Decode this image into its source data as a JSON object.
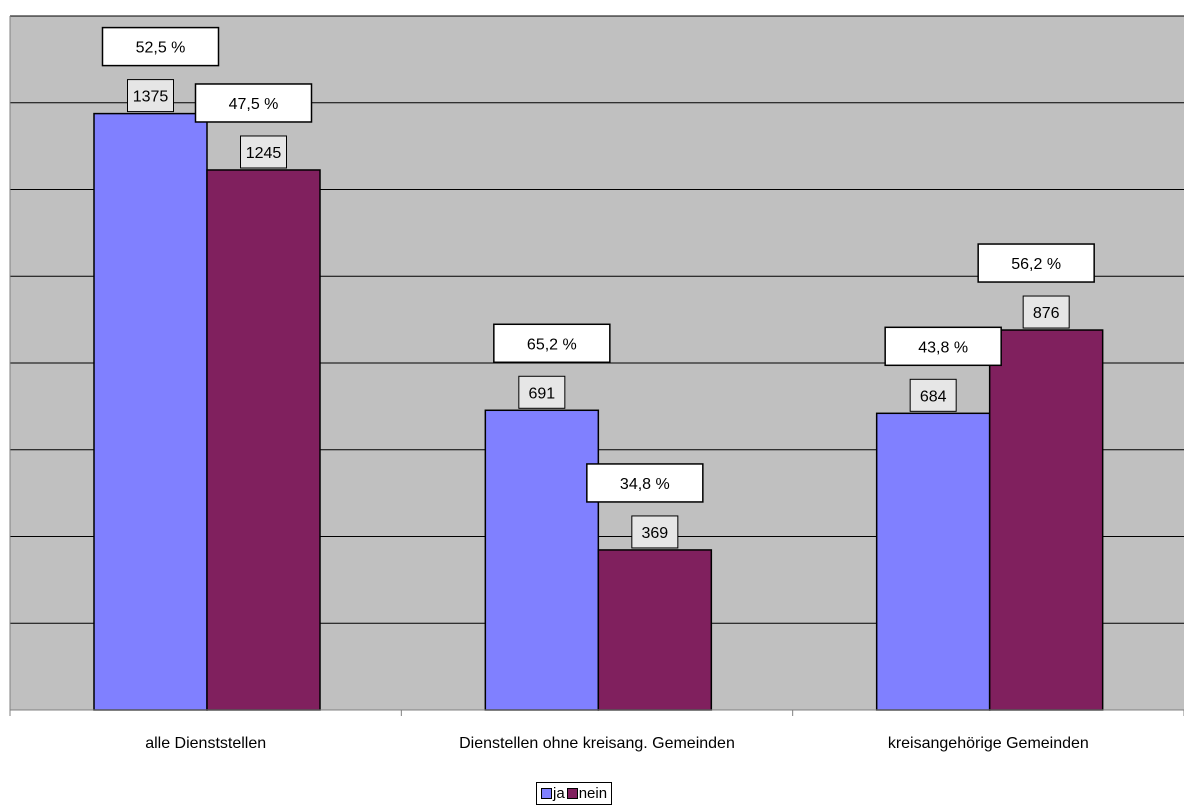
{
  "chart_data": {
    "type": "bar",
    "categories": [
      "alle Dienststellen",
      "Dienstellen ohne kreisang. Gemeinden",
      "kreisangehörige Gemeinden"
    ],
    "series": [
      {
        "name": "ja",
        "color": "#8080FF",
        "values": [
          1375,
          691,
          684
        ],
        "percent_labels": [
          "52,5 %",
          "65,2 %",
          "43,8 %"
        ]
      },
      {
        "name": "nein",
        "color": "#80205E",
        "values": [
          1245,
          369,
          876
        ],
        "percent_labels": [
          "47,5 %",
          "34,8 %",
          "56,2 %"
        ]
      }
    ],
    "ylim": [
      0,
      1600
    ],
    "y_gridline_step": 200,
    "grid": true,
    "plot_background": "#C0C0C0",
    "legend_position": "bottom-center",
    "title": "",
    "xlabel": "",
    "ylabel": ""
  }
}
